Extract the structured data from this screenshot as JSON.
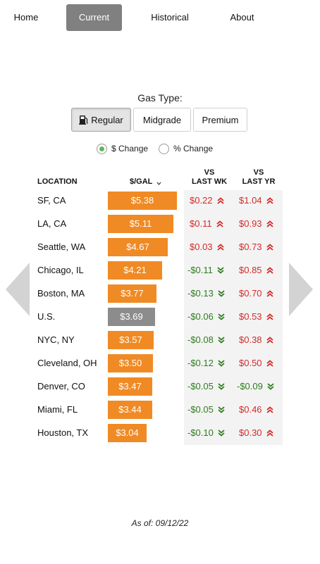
{
  "nav": {
    "items": [
      {
        "label": "Home"
      },
      {
        "label": "Current",
        "active": true
      },
      {
        "label": "Historical"
      },
      {
        "label": "About"
      }
    ]
  },
  "gas_type": {
    "label": "Gas Type:",
    "options": [
      {
        "label": "Regular",
        "icon": "gas-pump-icon",
        "active": true
      },
      {
        "label": "Midgrade"
      },
      {
        "label": "Premium"
      }
    ]
  },
  "change_mode": {
    "options": [
      {
        "label": "$ Change",
        "checked": true
      },
      {
        "label": "% Change",
        "checked": false
      }
    ]
  },
  "table": {
    "headers": {
      "location": "LOCATION",
      "price": "$/GAL",
      "sort_icon": "chevron-down-icon",
      "vs_wk_1": "VS",
      "vs_wk_2": "LAST WK",
      "vs_yr_1": "VS",
      "vs_yr_2": "LAST YR"
    },
    "colors": {
      "bar": "#f08a24",
      "us_bar": "#8c8c8c",
      "up": "#d42a2a",
      "down": "#2e7d1e"
    },
    "rows": [
      {
        "location": "SF, CA",
        "price": "$5.38",
        "price_value": 5.38,
        "wk": "$0.22",
        "wk_dir": "up",
        "yr": "$1.04",
        "yr_dir": "up"
      },
      {
        "location": "LA, CA",
        "price": "$5.11",
        "price_value": 5.11,
        "wk": "$0.11",
        "wk_dir": "up",
        "yr": "$0.93",
        "yr_dir": "up"
      },
      {
        "location": "Seattle, WA",
        "price": "$4.67",
        "price_value": 4.67,
        "wk": "$0.03",
        "wk_dir": "up",
        "yr": "$0.73",
        "yr_dir": "up"
      },
      {
        "location": "Chicago, IL",
        "price": "$4.21",
        "price_value": 4.21,
        "wk": "-$0.11",
        "wk_dir": "down",
        "yr": "$0.85",
        "yr_dir": "up"
      },
      {
        "location": "Boston, MA",
        "price": "$3.77",
        "price_value": 3.77,
        "wk": "-$0.13",
        "wk_dir": "down",
        "yr": "$0.70",
        "yr_dir": "up"
      },
      {
        "location": "U.S.",
        "price": "$3.69",
        "price_value": 3.69,
        "wk": "-$0.06",
        "wk_dir": "down",
        "yr": "$0.53",
        "yr_dir": "up",
        "national": true
      },
      {
        "location": "NYC, NY",
        "price": "$3.57",
        "price_value": 3.57,
        "wk": "-$0.08",
        "wk_dir": "down",
        "yr": "$0.38",
        "yr_dir": "up"
      },
      {
        "location": "Cleveland, OH",
        "price": "$3.50",
        "price_value": 3.5,
        "wk": "-$0.12",
        "wk_dir": "down",
        "yr": "$0.50",
        "yr_dir": "up"
      },
      {
        "location": "Denver, CO",
        "price": "$3.47",
        "price_value": 3.47,
        "wk": "-$0.05",
        "wk_dir": "down",
        "yr": "-$0.09",
        "yr_dir": "down"
      },
      {
        "location": "Miami, FL",
        "price": "$3.44",
        "price_value": 3.44,
        "wk": "-$0.05",
        "wk_dir": "down",
        "yr": "$0.46",
        "yr_dir": "up"
      },
      {
        "location": "Houston, TX",
        "price": "$3.04",
        "price_value": 3.04,
        "wk": "-$0.10",
        "wk_dir": "down",
        "yr": "$0.30",
        "yr_dir": "up"
      }
    ]
  },
  "navigation_arrows": {
    "prev_icon": "arrow-left-icon",
    "next_icon": "arrow-right-icon"
  },
  "footer": {
    "as_of": "As of: 09/12/22"
  }
}
